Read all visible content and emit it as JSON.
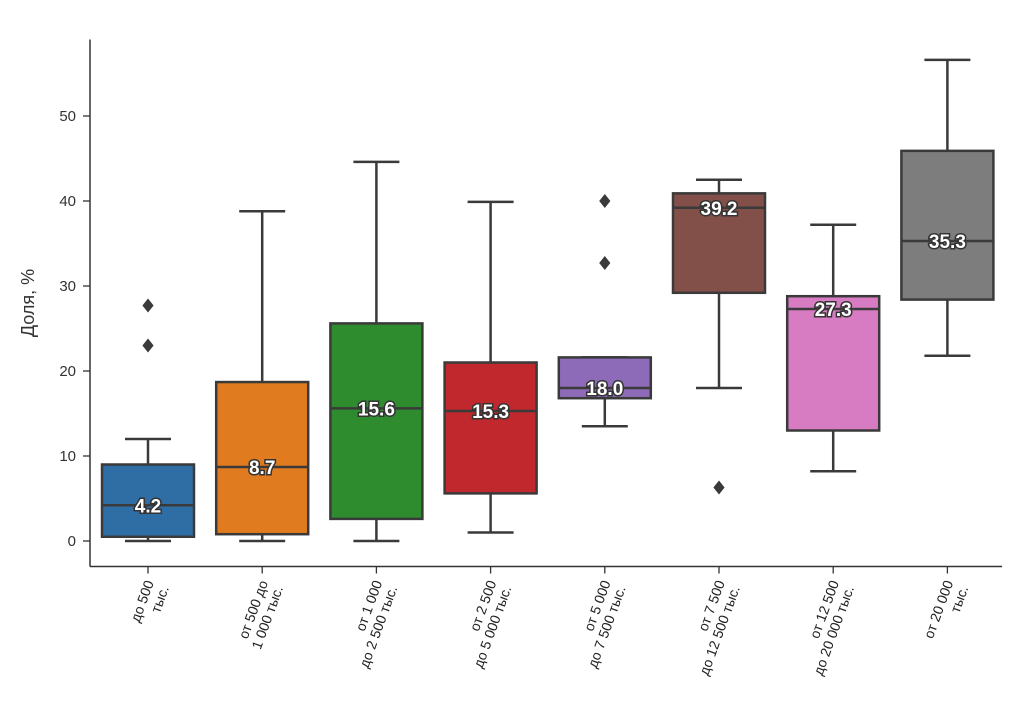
{
  "chart_data": {
    "type": "boxplot",
    "title": "",
    "xlabel": "",
    "ylabel": "Доля, %",
    "ylim": [
      -3,
      59
    ],
    "yticks": [
      0,
      10,
      20,
      30,
      40,
      50
    ],
    "grid": false,
    "categories": [
      [
        "до 500",
        "тыс."
      ],
      [
        "от 500 до",
        "1 000 тыс."
      ],
      [
        "от 1 000",
        "до 2 500 тыс."
      ],
      [
        "от 2 500",
        "до 5 000 тыс."
      ],
      [
        "от 5 000",
        "до 7 500 тыс."
      ],
      [
        "от 7 500",
        "до 12 500 тыс."
      ],
      [
        "от 12 500",
        "до 20 000 тыс."
      ],
      [
        "от 20 000",
        "тыс."
      ]
    ],
    "boxes": [
      {
        "color": "#2f6ea5",
        "whisker_low": 0,
        "q1": 0.5,
        "median": 4.2,
        "q3": 9.0,
        "whisker_high": 12.0,
        "outliers": [
          23.0,
          27.7
        ],
        "median_label": "4.2"
      },
      {
        "color": "#e07b20",
        "whisker_low": 0,
        "q1": 0.8,
        "median": 8.7,
        "q3": 18.7,
        "whisker_high": 38.8,
        "outliers": [],
        "median_label": "8.7"
      },
      {
        "color": "#2e8b2e",
        "whisker_low": 0,
        "q1": 2.6,
        "median": 15.6,
        "q3": 25.6,
        "whisker_high": 44.6,
        "outliers": [],
        "median_label": "15.6"
      },
      {
        "color": "#c0282e",
        "whisker_low": 1.0,
        "q1": 5.6,
        "median": 15.3,
        "q3": 21.0,
        "whisker_high": 39.9,
        "outliers": [],
        "median_label": "15.3"
      },
      {
        "color": "#8e6bb8",
        "whisker_low": 13.5,
        "q1": 16.8,
        "median": 18.0,
        "q3": 21.6,
        "whisker_high": 21.6,
        "outliers": [
          32.7,
          40.0
        ],
        "median_label": "18.0"
      },
      {
        "color": "#835049",
        "whisker_low": 18.0,
        "q1": 29.2,
        "median": 39.2,
        "q3": 40.9,
        "whisker_high": 42.5,
        "outliers": [
          6.3
        ],
        "median_label": "39.2"
      },
      {
        "color": "#d77cc2",
        "whisker_low": 8.2,
        "q1": 13.0,
        "median": 27.3,
        "q3": 28.8,
        "whisker_high": 37.2,
        "outliers": [],
        "median_label": "27.3"
      },
      {
        "color": "#7d7d7d",
        "whisker_low": 21.8,
        "q1": 28.4,
        "median": 35.3,
        "q3": 45.9,
        "whisker_high": 56.6,
        "outliers": [],
        "median_label": "35.3"
      }
    ]
  }
}
